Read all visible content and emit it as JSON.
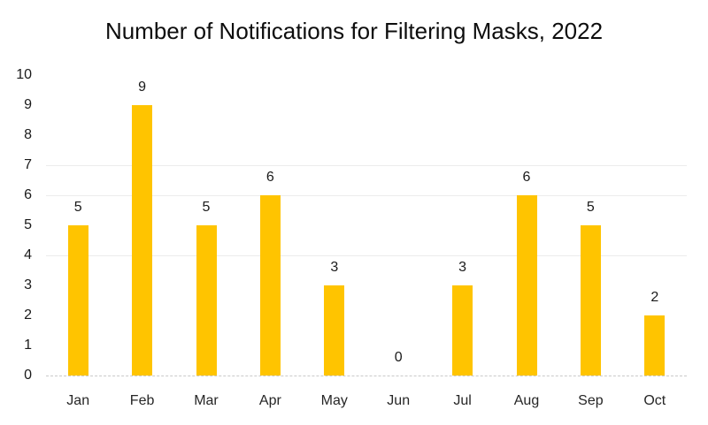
{
  "chart_data": {
    "type": "bar",
    "title": "Number of Notifications for Filtering Masks, 2022",
    "categories": [
      "Jan",
      "Feb",
      "Mar",
      "Apr",
      "May",
      "Jun",
      "Jul",
      "Aug",
      "Sep",
      "Oct"
    ],
    "values": [
      5,
      9,
      5,
      6,
      3,
      0,
      3,
      6,
      5,
      2
    ],
    "data_labels": [
      "5",
      "9",
      "5",
      "6",
      "3",
      "0",
      "3",
      "6",
      "5",
      "2"
    ],
    "xlabel": "",
    "ylabel": "",
    "ylim": [
      0,
      10
    ],
    "y_ticks": [
      0,
      1,
      2,
      3,
      4,
      5,
      6,
      7,
      8,
      9,
      10
    ],
    "gridlines_at": [
      4,
      6,
      7
    ],
    "legend": "none",
    "grid_visible": "partial",
    "bar_color": "#FFC400",
    "background_color": "#FFFFFF",
    "grid_color": "#ECECEC",
    "axis_line_color": "#C9C9C9",
    "text_color": "#1A1A1A"
  }
}
